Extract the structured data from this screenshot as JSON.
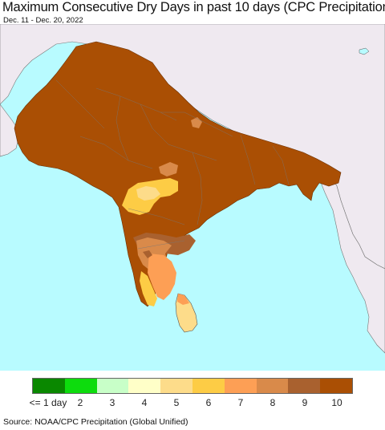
{
  "title": "Maximum Consecutive Dry Days in past 10 days (CPC Precipitation)",
  "date_range": "Dec. 11 - Dec. 20, 2022",
  "source": "Source: NOAA/CPC Precipitation (Global Unified)",
  "colors": {
    "ocean": "#b8fbff",
    "outside_land": "#efe9f0",
    "dry_10": "#aa4f04",
    "class_9": "#a9612f",
    "class_8": "#d98a4a",
    "class_7": "#fd9f55",
    "class_6": "#fdcc45",
    "class_5": "#fddc8a",
    "border": "#555555"
  },
  "legend": {
    "classes": [
      {
        "label": "<= 1 day",
        "color": "#0a8800"
      },
      {
        "label": "2",
        "color": "#0ddc0d"
      },
      {
        "label": "3",
        "color": "#c8ffc8"
      },
      {
        "label": "4",
        "color": "#ffffc8"
      },
      {
        "label": "5",
        "color": "#fddc8a"
      },
      {
        "label": "6",
        "color": "#fdcc45"
      },
      {
        "label": "7",
        "color": "#fd9f55"
      },
      {
        "label": "8",
        "color": "#d98a4a"
      },
      {
        "label": "9",
        "color": "#a9612f"
      },
      {
        "label": "10",
        "color": "#aa4f04"
      }
    ]
  }
}
